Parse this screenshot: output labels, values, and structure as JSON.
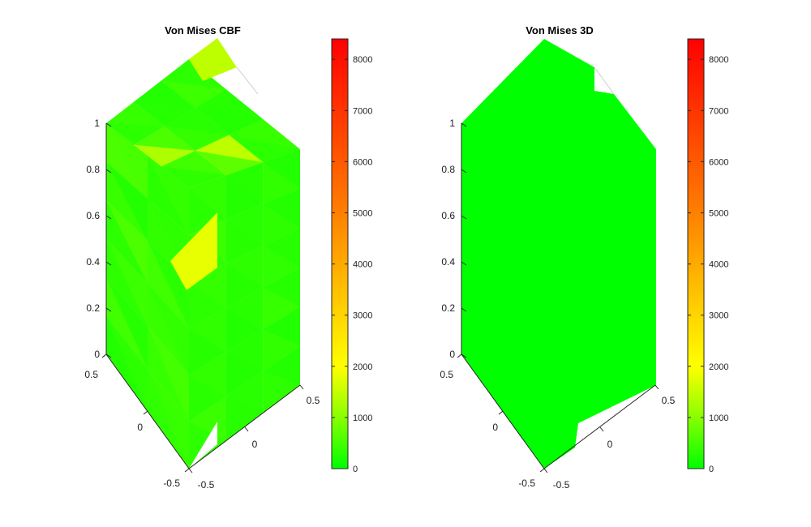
{
  "chart_data": [
    {
      "type": "3d-surface",
      "title": "Von Mises CBF",
      "colormap": "green-yellow-red",
      "zticks": [
        "0",
        "0.2",
        "0.4",
        "0.6",
        "0.8",
        "1"
      ],
      "xticks": [
        "-0.5",
        "0",
        "0.5"
      ],
      "yticks": [
        "-0.5",
        "0",
        "0.5"
      ],
      "colorbar": {
        "range": [
          0,
          8400
        ],
        "ticks": [
          "0",
          "1000",
          "2000",
          "3000",
          "4000",
          "5000",
          "6000",
          "7000",
          "8000"
        ]
      },
      "faces": {
        "left_face_values": [
          520,
          380,
          260,
          340,
          560,
          300,
          440,
          360,
          280,
          500,
          320,
          410
        ],
        "right_face_values": [
          360,
          280,
          240,
          420,
          300,
          260,
          380,
          330,
          290,
          350,
          310,
          270
        ],
        "top_face_values": [
          400,
          260,
          320,
          560,
          300,
          280,
          460,
          1450
        ],
        "hot_spot_value": 1800
      }
    },
    {
      "type": "3d-surface",
      "title": "Von Mises 3D",
      "colormap": "green-yellow-red",
      "zticks": [
        "0",
        "0.2",
        "0.4",
        "0.6",
        "0.8",
        "1"
      ],
      "xticks": [
        "-0.5",
        "0",
        "0.5"
      ],
      "yticks": [
        "-0.5",
        "0",
        "0.5"
      ],
      "colorbar": {
        "range": [
          0,
          8400
        ],
        "ticks": [
          "0",
          "1000",
          "2000",
          "3000",
          "4000",
          "5000",
          "6000",
          "7000",
          "8000"
        ]
      },
      "faces": {
        "uniform_value": 0
      }
    }
  ]
}
